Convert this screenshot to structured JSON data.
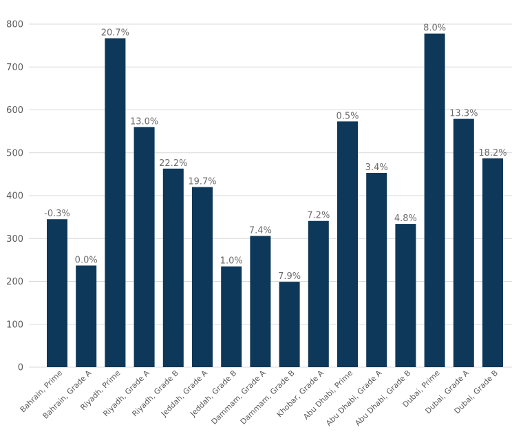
{
  "chart_data": {
    "type": "bar",
    "title": "",
    "xlabel": "",
    "ylabel": "",
    "ylim": [
      0,
      800
    ],
    "yticks": [
      0,
      100,
      200,
      300,
      400,
      500,
      600,
      700,
      800
    ],
    "grid": true,
    "bar_color": "#0d3859",
    "categories": [
      "Bahrain, Prime",
      "Bahrain, Grade A",
      "Riyadh, Prime",
      "Riyadh, Grade A",
      "Riyadh, Grade B",
      "Jeddah, Grade A",
      "Jeddah, Grade B",
      "Dammam, Grade A",
      "Dammam, Grade B",
      "Khobar, Grade A",
      "Abu Dhabi, Prime",
      "Abu Dhabi, Grade A",
      "Abu Dhabi, Grade B",
      "Dubai, Prime",
      "Dubai, Grade A",
      "Dubai, Grade B"
    ],
    "values": [
      345,
      237,
      767,
      560,
      463,
      420,
      235,
      306,
      199,
      341,
      573,
      453,
      334,
      778,
      579,
      487
    ],
    "data_labels": [
      "-0.3%",
      "0.0%",
      "20.7%",
      "13.0%",
      "22.2%",
      "19.7%",
      "1.0%",
      "7.4%",
      "7.9%",
      "7.2%",
      "0.5%",
      "3.4%",
      "4.8%",
      "8.0%",
      "13.3%",
      "18.2%"
    ]
  }
}
